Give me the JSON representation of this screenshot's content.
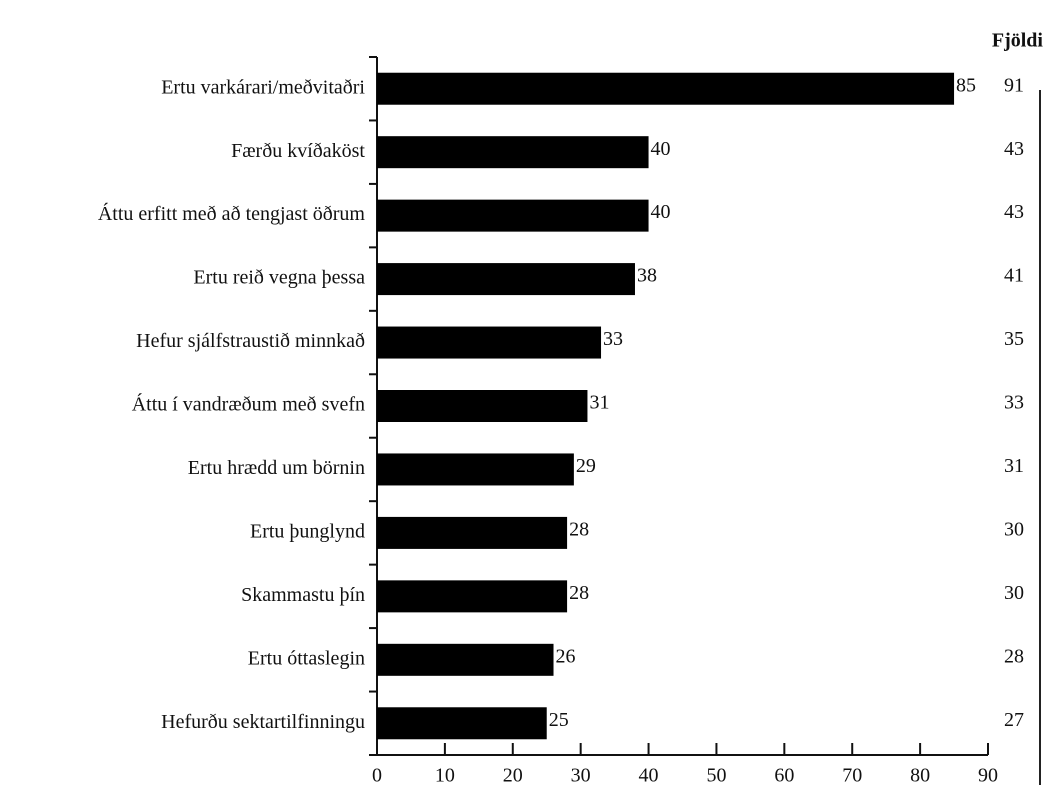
{
  "chart_data": {
    "type": "barh",
    "categories": [
      "Ertu varkárari/meðvitaðri",
      "Færðu kvíðaköst",
      "Áttu erfitt með að tengjast öðrum",
      "Ertu reið vegna þessa",
      "Hefur sjálfstraustið minnkað",
      "Áttu í vandræðum með svefn",
      "Ertu hrædd um börnin",
      "Ertu þunglynd",
      "Skammastu þín",
      "Ertu óttaslegin",
      "Hefurðu sektartilfinningu"
    ],
    "values": [
      85,
      40,
      40,
      38,
      33,
      31,
      29,
      28,
      28,
      26,
      25
    ],
    "color": "#000000",
    "xlim": [
      0,
      90
    ],
    "xticks": [
      0,
      10,
      20,
      30,
      40,
      50,
      60,
      70,
      80,
      90
    ],
    "count_header": "Fjöldi",
    "counts": [
      91,
      43,
      43,
      41,
      35,
      33,
      31,
      30,
      30,
      28,
      27
    ]
  }
}
